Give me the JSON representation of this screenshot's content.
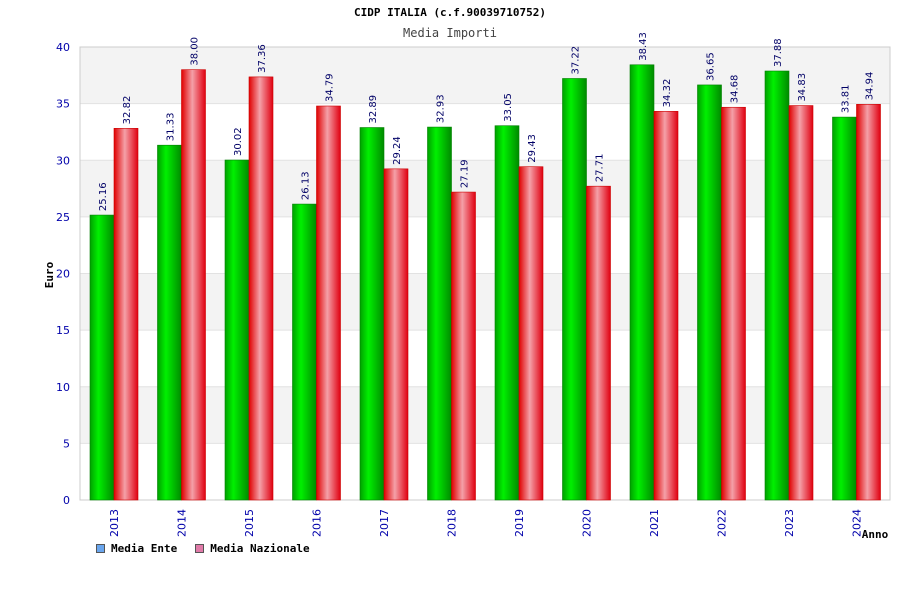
{
  "chart_data": {
    "type": "bar",
    "title": "CIDP ITALIA (c.f.90039710752)",
    "subtitle": "Media Importi",
    "xlabel": "Anno",
    "ylabel": "Euro",
    "ylim": [
      0,
      40
    ],
    "yticks": [
      "0",
      "5",
      "10",
      "15",
      "20",
      "25",
      "30",
      "35",
      "40"
    ],
    "categories": [
      "2013",
      "2014",
      "2015",
      "2016",
      "2017",
      "2018",
      "2019",
      "2020",
      "2021",
      "2022",
      "2023",
      "2024"
    ],
    "series": [
      {
        "name": "Media Ente",
        "color": "#00c800",
        "legend_color": "#6aa6ee",
        "values": [
          25.16,
          31.33,
          30.02,
          26.13,
          32.89,
          32.93,
          33.05,
          37.22,
          38.43,
          36.65,
          37.88,
          33.81
        ],
        "labels": [
          "25.16",
          "31.33",
          "30.02",
          "26.13",
          "32.89",
          "32.93",
          "33.05",
          "37.22",
          "38.43",
          "36.65",
          "37.88",
          "33.81"
        ]
      },
      {
        "name": "Media Nazionale",
        "color": "#e8202a",
        "legend_color": "#e07aa8",
        "values": [
          32.82,
          38.0,
          37.36,
          34.79,
          29.24,
          27.19,
          29.43,
          27.71,
          34.32,
          34.68,
          34.83,
          34.94
        ],
        "labels": [
          "32.82",
          "38.00",
          "37.36",
          "34.79",
          "29.24",
          "27.19",
          "29.43",
          "27.71",
          "34.32",
          "34.68",
          "34.83",
          "34.94"
        ]
      }
    ],
    "grid": true,
    "band_color": "#f3f3f3",
    "legend_position": "bottom-left"
  }
}
